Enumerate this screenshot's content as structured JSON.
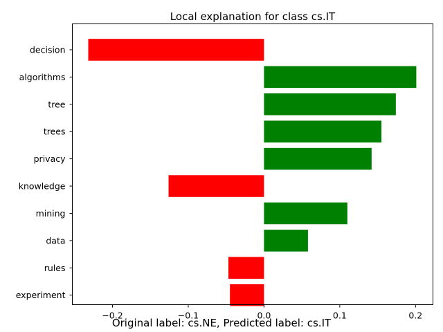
{
  "chart_data": {
    "type": "bar",
    "orientation": "horizontal",
    "title": "Local explanation for class cs.IT",
    "categories": [
      "decision",
      "algorithms",
      "tree",
      "trees",
      "privacy",
      "knowledge",
      "mining",
      "data",
      "rules",
      "experiment"
    ],
    "values": [
      -0.232,
      0.201,
      0.174,
      0.155,
      0.142,
      -0.126,
      0.11,
      0.058,
      -0.047,
      -0.045
    ],
    "colors": {
      "positive": "#008000",
      "negative": "#ff0000"
    },
    "xlim": [
      -0.253,
      0.223
    ],
    "xticks": [
      -0.2,
      -0.1,
      0.0,
      0.1,
      0.2
    ],
    "xtick_labels": [
      "−0.2",
      "−0.1",
      "0.0",
      "0.1",
      "0.2"
    ],
    "grid": false
  },
  "caption": "Original label: cs.NE, Predicted label: cs.IT"
}
